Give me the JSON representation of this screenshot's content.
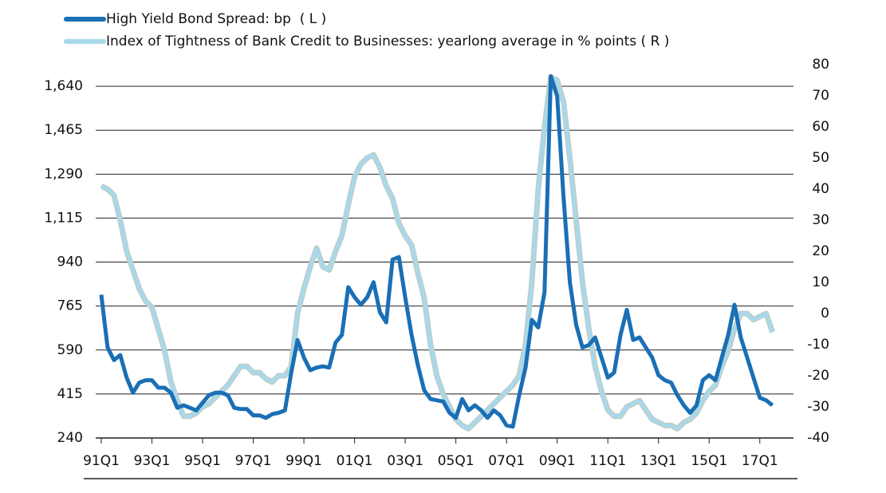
{
  "chart_data": {
    "type": "line",
    "categories": [
      "91Q1",
      null,
      null,
      null,
      null,
      null,
      null,
      null,
      "93Q1",
      null,
      null,
      null,
      null,
      null,
      null,
      null,
      "95Q1",
      null,
      null,
      null,
      null,
      null,
      null,
      null,
      "97Q1",
      null,
      null,
      null,
      null,
      null,
      null,
      null,
      "99Q1",
      null,
      null,
      null,
      null,
      null,
      null,
      null,
      "01Q1",
      null,
      null,
      null,
      null,
      null,
      null,
      null,
      "03Q1",
      null,
      null,
      null,
      null,
      null,
      null,
      null,
      "05Q1",
      null,
      null,
      null,
      null,
      null,
      null,
      null,
      "07Q1",
      null,
      null,
      null,
      null,
      null,
      null,
      null,
      "09Q1",
      null,
      null,
      null,
      null,
      null,
      null,
      null,
      "11Q1",
      null,
      null,
      null,
      null,
      null,
      null,
      null,
      "13Q1",
      null,
      null,
      null,
      null,
      null,
      null,
      null,
      "15Q1",
      null,
      null,
      null,
      null,
      null,
      null,
      null,
      "17Q1",
      null,
      null
    ],
    "series": [
      {
        "name": "High Yield Bond Spread: bp  ( L )",
        "color": "#1a6fb5",
        "axis": "y",
        "values": [
          810,
          600,
          550,
          570,
          480,
          420,
          460,
          470,
          470,
          440,
          440,
          420,
          360,
          370,
          360,
          350,
          380,
          410,
          420,
          420,
          410,
          360,
          355,
          355,
          330,
          330,
          320,
          335,
          340,
          350,
          500,
          630,
          560,
          510,
          520,
          525,
          520,
          620,
          650,
          840,
          800,
          770,
          800,
          860,
          740,
          700,
          950,
          960,
          800,
          650,
          530,
          430,
          395,
          390,
          385,
          340,
          320,
          395,
          350,
          370,
          350,
          320,
          350,
          330,
          290,
          285,
          410,
          520,
          710,
          680,
          820,
          1680,
          1600,
          1200,
          860,
          690,
          600,
          610,
          640,
          560,
          480,
          500,
          650,
          750,
          630,
          640,
          600,
          560,
          490,
          470,
          460,
          410,
          370,
          340,
          370,
          470,
          490,
          470,
          560,
          650,
          770,
          640,
          560,
          480,
          400,
          390,
          370
        ]
      },
      {
        "name": "Index of Tightness of Bank Credit to Businesses: yearlong average in % points ( R )",
        "color": "#a8d8ea",
        "axis": "y2",
        "values": [
          41,
          40,
          38,
          30,
          20,
          14,
          8,
          4,
          2,
          -5,
          -12,
          -22,
          -28,
          -33,
          -33,
          -32,
          -30,
          -29,
          -27,
          -25,
          -23,
          -20,
          -17,
          -17,
          -19,
          -19,
          -21,
          -22,
          -20,
          -20,
          -17,
          0,
          8,
          15,
          21,
          15,
          14,
          20,
          25,
          35,
          44,
          48,
          50,
          51,
          47,
          41,
          37,
          29,
          25,
          22,
          13,
          5,
          -10,
          -20,
          -26,
          -30,
          -34,
          -36,
          -37,
          -35,
          -33,
          -31,
          -29,
          -27,
          -25,
          -23,
          -20,
          -10,
          10,
          40,
          60,
          76,
          75,
          68,
          50,
          30,
          10,
          -5,
          -17,
          -25,
          -31,
          -33,
          -33,
          -30,
          -29,
          -28,
          -31,
          -34,
          -35,
          -36,
          -36,
          -37,
          -35,
          -34,
          -32,
          -28,
          -25,
          -23,
          -17,
          -12,
          -5,
          0,
          0,
          -2,
          -1,
          0,
          -6
        ]
      }
    ],
    "ylim": [
      240,
      1726
    ],
    "yticks": [
      240,
      415,
      590,
      765,
      940,
      {
        "value": 1115,
        "label": "1,115"
      },
      {
        "value": 1290,
        "label": "1,290"
      },
      {
        "value": 1465,
        "label": "1,465"
      },
      {
        "value": 1640,
        "label": "1,640"
      }
    ],
    "y2lim": [
      -40,
      80
    ],
    "y2ticks": [
      -40,
      -30,
      -20,
      -10,
      0,
      10,
      20,
      30,
      40,
      50,
      60,
      70,
      80
    ],
    "grid": true
  }
}
